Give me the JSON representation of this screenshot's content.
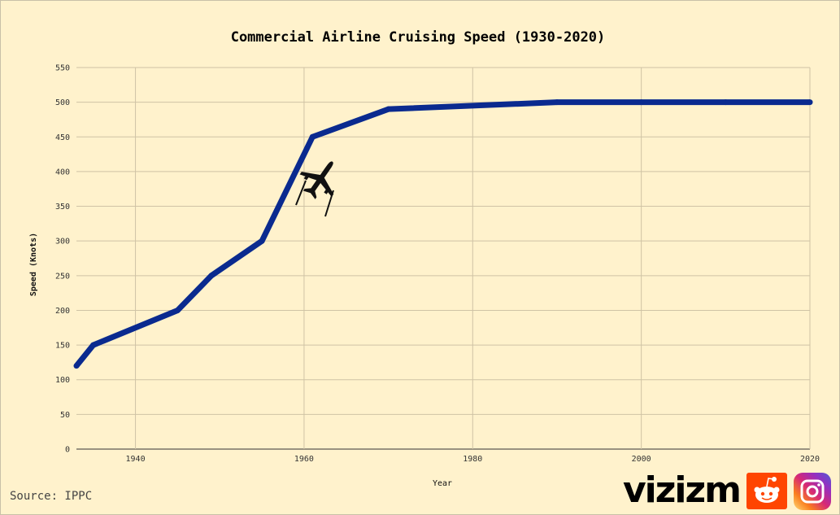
{
  "chart_data": {
    "type": "line",
    "title": "Commercial Airline Cruising Speed (1930-2020)",
    "xlabel": "Year",
    "ylabel": "Speed (Knots)",
    "xlim": [
      1933,
      2020
    ],
    "ylim": [
      0,
      550
    ],
    "x_ticks": [
      1940,
      1960,
      1980,
      2000,
      2020
    ],
    "y_ticks": [
      0,
      50,
      100,
      150,
      200,
      250,
      300,
      350,
      400,
      450,
      500,
      550
    ],
    "grid": true,
    "series": [
      {
        "color": "#0a2a8f",
        "x": [
          1933,
          1935,
          1945,
          1949,
          1955,
          1961,
          1970,
          1990,
          2000,
          2010,
          2020
        ],
        "y": [
          120,
          150,
          200,
          250,
          300,
          450,
          490,
          500,
          500,
          500,
          500
        ]
      }
    ]
  },
  "source_text": "Source: IPPC",
  "brand_text": "vizizm",
  "icons": {
    "plane": "airplane-icon",
    "reddit": "reddit-icon",
    "instagram": "instagram-icon"
  }
}
